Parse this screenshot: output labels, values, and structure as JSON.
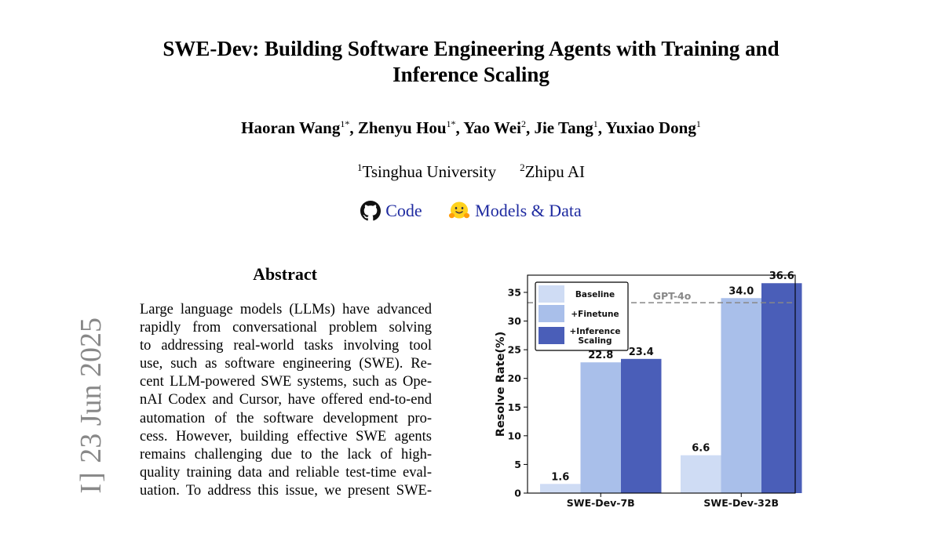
{
  "paper": {
    "title_line1": "SWE-Dev: Building Software Engineering Agents with Training and",
    "title_line2": "Inference Scaling",
    "authors": [
      {
        "name": "Haoran Wang",
        "sup": "1*"
      },
      {
        "name": "Zhenyu Hou",
        "sup": "1*"
      },
      {
        "name": "Yao Wei",
        "sup": "2"
      },
      {
        "name": "Jie Tang",
        "sup": "1"
      },
      {
        "name": "Yuxiao Dong",
        "sup": "1"
      }
    ],
    "affiliations": [
      {
        "sup": "1",
        "name": "Tsinghua University"
      },
      {
        "sup": "2",
        "name": "Zhipu AI"
      }
    ],
    "links": {
      "code": "Code",
      "models": "Models & Data"
    },
    "abstract_title": "Abstract",
    "abstract_lines": [
      "Large language models (LLMs) have advanced",
      "rapidly from conversational problem solving",
      "to addressing real-world tasks involving tool",
      "use, such as software engineering (SWE). Re-",
      "cent LLM-powered SWE systems, such as Ope-",
      "nAI Codex and Cursor, have offered end-to-end",
      "automation of the software development pro-",
      "cess. However, building effective SWE agents",
      "remains challenging due to the lack of high-",
      "quality training data and reliable test-time eval-",
      "uation. To address this issue, we present SWE-"
    ],
    "arxiv_sidebar": {
      "partial": "I]",
      "date": "23 Jun 2025"
    }
  },
  "chart_data": {
    "type": "bar",
    "categories": [
      "SWE-Dev-7B",
      "SWE-Dev-32B"
    ],
    "series": [
      {
        "name": "Baseline",
        "values": [
          1.6,
          6.6
        ],
        "color": "#cfdcf4"
      },
      {
        "name": "+Finetune",
        "values": [
          22.8,
          34.0
        ],
        "color": "#a9bfea"
      },
      {
        "name": "+Inference\nScaling",
        "values": [
          23.4,
          36.6
        ],
        "color": "#4a5eb8"
      }
    ],
    "value_labels": [
      [
        "1.6",
        "22.8",
        "23.4"
      ],
      [
        "6.6",
        "34.0",
        "36.6"
      ]
    ],
    "ylabel": "Resolve Rate(%)",
    "yticks": [
      0,
      5,
      10,
      15,
      20,
      25,
      30,
      35
    ],
    "ylim": [
      0,
      38
    ],
    "reference_line": {
      "label": "GPT-4o",
      "value": 33.2
    },
    "legend_position": "top-left",
    "grid": false
  }
}
